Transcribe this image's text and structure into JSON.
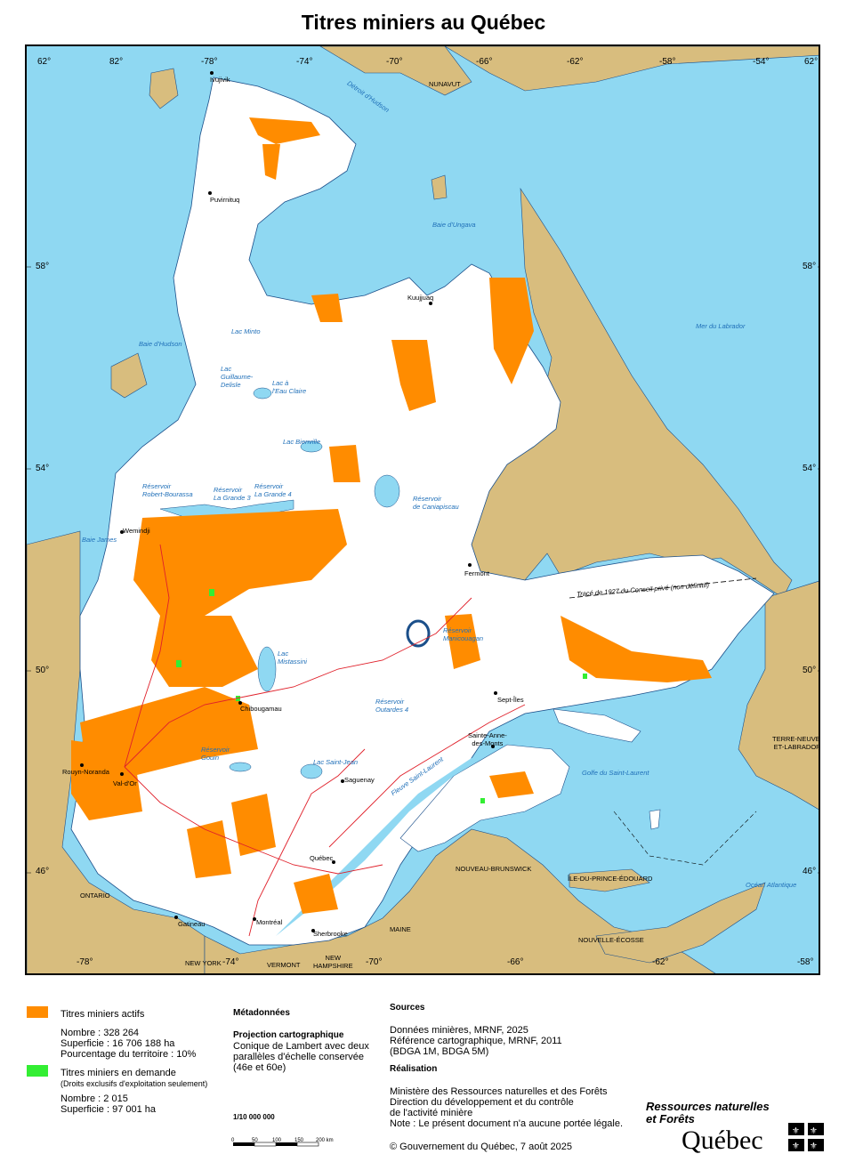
{
  "title": "Titres miniers au Québec",
  "graticule": {
    "top_labels": [
      "62°",
      "82°",
      "-78°",
      "-74°",
      "-70°",
      "-66°",
      "-62°",
      "-58°",
      "-54°",
      "62°"
    ],
    "bottom_labels": [
      "-78°",
      "-74°",
      "-70°",
      "-66°",
      "-62°",
      "-58°"
    ],
    "left_labels": [
      "58°",
      "54°",
      "50°",
      "46°"
    ],
    "right_labels": [
      "58°",
      "54°",
      "50°",
      "46°"
    ]
  },
  "regions": {
    "nunavut": "NUNAVUT",
    "ontario": "ONTARIO",
    "terre_neuve": "TERRE-NEUVE-\nET-LABRADOR",
    "nouveau_brunswick": "NOUVEAU-BRUNSWICK",
    "ile_pe": "ÎLE-DU-PRINCE-ÉDOUARD",
    "nouvelle_ecosse": "NOUVELLE-ÉCOSSE",
    "maine": "MAINE",
    "new_york": "NEW YORK",
    "vermont": "VERMONT",
    "new_hampshire": "NEW\nHAMPSHIRE"
  },
  "water_labels": {
    "detroit": "Détroit d'Hudson",
    "baie_ungava": "Baie d'Ungava",
    "mer_labrador": "Mer du Labrador",
    "baie_hudson": "Baie d'Hudson",
    "lac_minto": "Lac Minto",
    "lac_guillaume": "Lac\nGuillaume-\nDelisle",
    "lac_eau_claire": "Lac à\nl'Eau Claire",
    "lac_bienville": "Lac Bienville",
    "res_robert": "Réservoir\nRobert-Bourassa",
    "res_lg3": "Réservoir\nLa Grande 3",
    "res_lg4": "Réservoir\nLa Grande 4",
    "res_caniapiscau": "Réservoir\nde Caniapiscau",
    "baie_james": "Baie James",
    "lac_mistassini": "Lac\nMistassini",
    "res_manicouagan": "Réservoir\nManicouagan",
    "res_outardes": "Réservoir\nOutardes 4",
    "res_gouin": "Réservoir\nGouin",
    "lac_st_jean": "Lac Saint-Jean",
    "fleuve": "Fleuve Saint-Laurent",
    "golfe": "Golfe du Saint-Laurent",
    "ocean": "Océan Atlantique",
    "trace": "Tracé de 1927 du Conseil privé (non définitif)"
  },
  "cities": {
    "ivujivik": "Ivujivik",
    "puvirnituq": "Puvirnituq",
    "kuujjuaq": "Kuujjuaq",
    "wemindji": "Wemindji",
    "fermont": "Fermont",
    "chibougamau": "Chibougamau",
    "sept_iles": "Sept-Îles",
    "sainte_anne": "Sainte-Anne-\ndes-Monts",
    "saguenay": "Saguenay",
    "rouyn": "Rouyn-Noranda",
    "val_dor": "Val-d'Or",
    "quebec": "Québec",
    "gatineau": "Gatineau",
    "montreal": "Montréal",
    "sherbrooke": "Sherbrooke"
  },
  "legend": {
    "actifs_label": "Titres miniers actifs",
    "actifs_nombre": "Nombre : 328 264",
    "actifs_superficie": "Superficie : 16 706 188 ha",
    "actifs_pourcentage": "Pourcentage du territoire : 10%",
    "demande_label": "Titres miniers en demande",
    "demande_note": "(Droits exclusifs d'exploitation seulement)",
    "demande_nombre": "Nombre : 2 015",
    "demande_superficie": "Superficie : 97 001 ha",
    "color_actifs": "#ff8c00",
    "color_demande": "#33ee33"
  },
  "metadonnees": {
    "heading": "Métadonnées",
    "proj_heading": "Projection cartographique",
    "proj_1": "Conique de Lambert avec deux",
    "proj_2": "parallèles d'échelle conservée",
    "proj_3": "(46e et 60e)",
    "scale": "1/10 000 000",
    "scale_ticks": [
      "0",
      "50",
      "100",
      "150",
      "200 km"
    ]
  },
  "sources": {
    "heading": "Sources",
    "line1": "Données minières, MRNF, 2025",
    "line2": "Référence cartographique, MRNF, 2011",
    "line3": "(BDGA 1M, BDGA 5M)",
    "real_heading": "Réalisation",
    "real1": "Ministère des Ressources naturelles et des Forêts",
    "real2": "Direction du développement et du contrôle",
    "real3": "de l'activité minière",
    "note": "Note : Le présent document n'a aucune portée légale.",
    "copyright": "© Gouvernement du Québec, 7 août 2025"
  },
  "logo": {
    "line1": "Ressources naturelles",
    "line2": "et Forêts",
    "name": "Québec"
  },
  "colors": {
    "water": "#8fd8f2",
    "land_other": "#d8bd7e",
    "quebec": "#ffffff",
    "claims": "#ff8c00",
    "roads": "#e0202a",
    "rivers": "#3a7fc8"
  }
}
